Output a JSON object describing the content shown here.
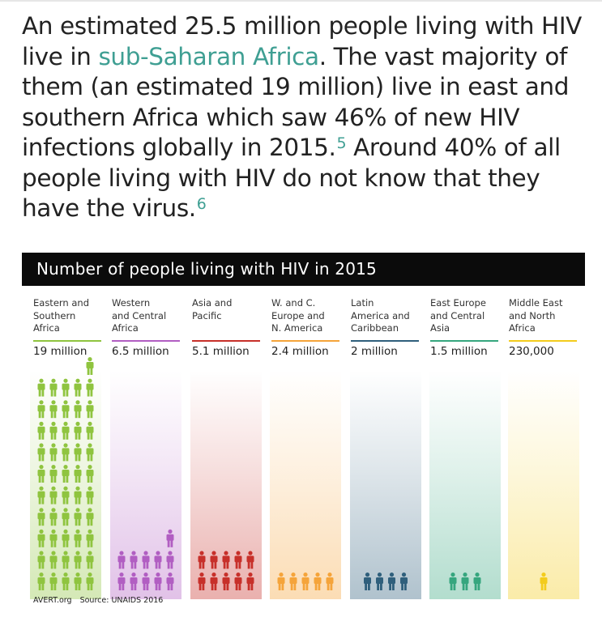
{
  "article": {
    "text_1": "An estimated 25.5 million people living with HIV live in ",
    "link_label": "sub-Saharan Africa",
    "text_2": ". The vast majority of them (an estimated 19 million) live in east and southern Africa which saw 46% of new HIV infections globally in 2015.",
    "footnote_1": "5",
    "text_3": " Around 40% of all people living with HIV do not know that they have the virus.",
    "footnote_2": "6"
  },
  "infographic": {
    "title": "Number of people living with HIV in 2015",
    "regions": [
      {
        "label_lines": [
          "Eastern and",
          "Southern",
          "Africa"
        ],
        "value_label": "19 million",
        "color": "#8fc43f",
        "icon_count": 51
      },
      {
        "label_lines": [
          "Western",
          "and Central",
          "Africa"
        ],
        "value_label": "6.5 million",
        "color": "#b15ec2",
        "icon_count": 11
      },
      {
        "label_lines": [
          "Asia and",
          "Pacific"
        ],
        "value_label": "5.1 million",
        "color": "#c7302a",
        "icon_count": 10
      },
      {
        "label_lines": [
          "W. and C.",
          "Europe and",
          "N. America"
        ],
        "value_label": "2.4 million",
        "color": "#f5a43a",
        "icon_count": 5
      },
      {
        "label_lines": [
          "Latin",
          "America and",
          "Caribbean"
        ],
        "value_label": "2 million",
        "color": "#2f5f7c",
        "icon_count": 4
      },
      {
        "label_lines": [
          "East Europe",
          "and Central",
          "Asia"
        ],
        "value_label": "1.5 million",
        "color": "#36a67e",
        "icon_count": 3
      },
      {
        "label_lines": [
          "Middle East",
          "and North",
          "Africa"
        ],
        "value_label": "230,000",
        "color": "#f3cc1c",
        "icon_count": 1
      }
    ],
    "footer_brand": "AVERT.org",
    "footer_source": "Source: UNAIDS 2016"
  }
}
